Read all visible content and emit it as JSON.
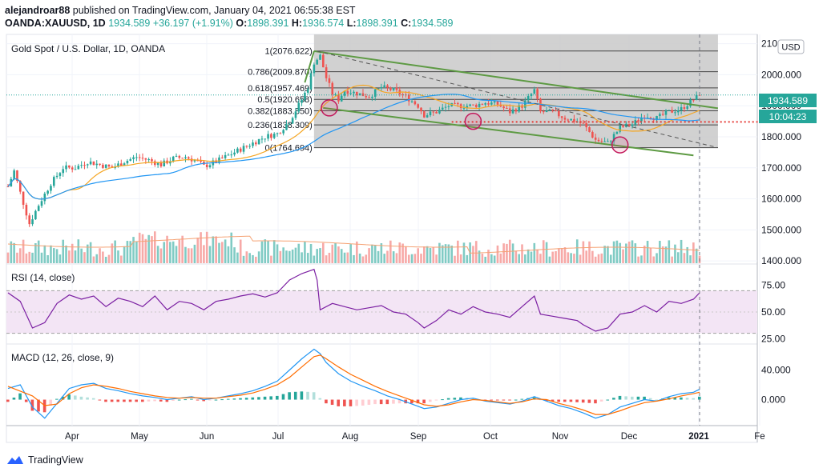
{
  "header": {
    "author": "alejandroar88",
    "published_text": "published on TradingView.com, January 04, 2021 06:55:38 EST"
  },
  "ticker": {
    "symbol": "OANDA:XAUUSD, 1D",
    "last": "1934.589",
    "change": "+36.197 (+1.91%)",
    "o_label": "O:",
    "o": "1898.391",
    "h_label": "H:",
    "h": "1936.574",
    "l_label": "L:",
    "l": "1898.391",
    "c_label": "C:",
    "c": "1934.589"
  },
  "main_pane": {
    "title": "Gold Spot / U.S. Dollar, 1D, OANDA",
    "currency_button": "USD",
    "price_badge": "1934.589",
    "countdown_badge": "10:04:23"
  },
  "rsi_pane": {
    "title": "RSI (14, close)"
  },
  "macd_pane": {
    "title": "MACD (12, 26, close, 9)"
  },
  "footer": {
    "brand": "TradingView"
  },
  "colors": {
    "up": "#26a69a",
    "down": "#ef5350",
    "ma_fast": "#f5a623",
    "ma_slow": "#2196f3",
    "channel": "#5d9a43",
    "fib_zone": "#c9c9c9",
    "rsi": "#7b1fa2",
    "rsi_band": "#f3e5f5",
    "macd_line": "#2196f3",
    "signal_line": "#ff6d00"
  },
  "chart_data": [
    {
      "type": "candlestick",
      "title": "Gold Spot / U.S. Dollar, 1D, OANDA",
      "x_ticks": [
        "Apr",
        "May",
        "Jun",
        "Jul",
        "Aug",
        "Sep",
        "Oct",
        "Nov",
        "Dec",
        "2021",
        "Fe"
      ],
      "y_ticks": [
        "2100.000",
        "2000.000",
        "1900.000",
        "1800.000",
        "1700.000",
        "1600.000",
        "1500.000",
        "1400.000"
      ],
      "ylim": [
        1390,
        2130
      ],
      "overlays": [
        "moving-average-fast",
        "moving-average-slow",
        "volume"
      ],
      "price_path": [
        [
          0,
          1640
        ],
        [
          2,
          1690
        ],
        [
          4,
          1620
        ],
        [
          7,
          1520
        ],
        [
          10,
          1580
        ],
        [
          14,
          1650
        ],
        [
          18,
          1700
        ],
        [
          22,
          1700
        ],
        [
          26,
          1720
        ],
        [
          30,
          1710
        ],
        [
          34,
          1700
        ],
        [
          38,
          1720
        ],
        [
          42,
          1735
        ],
        [
          46,
          1725
        ],
        [
          50,
          1710
        ],
        [
          54,
          1730
        ],
        [
          58,
          1735
        ],
        [
          62,
          1720
        ],
        [
          64,
          1705
        ],
        [
          68,
          1720
        ],
        [
          72,
          1740
        ],
        [
          76,
          1760
        ],
        [
          80,
          1780
        ],
        [
          84,
          1800
        ],
        [
          88,
          1810
        ],
        [
          92,
          1850
        ],
        [
          96,
          1920
        ],
        [
          98,
          1960
        ],
        [
          100,
          2040
        ],
        [
          102,
          2060
        ],
        [
          104,
          1990
        ],
        [
          106,
          1940
        ],
        [
          108,
          1920
        ],
        [
          110,
          1950
        ],
        [
          114,
          1940
        ],
        [
          118,
          1930
        ],
        [
          122,
          1960
        ],
        [
          126,
          1950
        ],
        [
          130,
          1930
        ],
        [
          134,
          1900
        ],
        [
          136,
          1870
        ],
        [
          140,
          1880
        ],
        [
          144,
          1900
        ],
        [
          148,
          1900
        ],
        [
          152,
          1900
        ],
        [
          156,
          1910
        ],
        [
          160,
          1905
        ],
        [
          164,
          1880
        ],
        [
          168,
          1900
        ],
        [
          172,
          1950
        ],
        [
          174,
          1880
        ],
        [
          178,
          1880
        ],
        [
          182,
          1860
        ],
        [
          186,
          1850
        ],
        [
          188,
          1840
        ],
        [
          192,
          1790
        ],
        [
          196,
          1780
        ],
        [
          200,
          1830
        ],
        [
          204,
          1840
        ],
        [
          208,
          1870
        ],
        [
          212,
          1860
        ],
        [
          216,
          1880
        ],
        [
          220,
          1890
        ],
        [
          224,
          1920
        ],
        [
          226,
          1934.589
        ]
      ],
      "fibonacci": [
        {
          "label": "1(2076.622)",
          "value": 2076.622
        },
        {
          "label": "0.786(2009.870)",
          "value": 2009.87
        },
        {
          "label": "0.618(1957.469)",
          "value": 1957.469
        },
        {
          "label": "0.5(1920.658)",
          "value": 1920.658
        },
        {
          "label": "0.382(1883.850)",
          "value": 1883.85
        },
        {
          "label": "0.236(1838.309)",
          "value": 1838.309
        },
        {
          "label": "0(1764.694)",
          "value": 1764.694
        }
      ],
      "last_price": 1934.589
    },
    {
      "type": "line",
      "title": "RSI (14, close)",
      "y_ticks": [
        "75.00",
        "50.00",
        "25.00"
      ],
      "ylim": [
        20,
        95
      ],
      "band": [
        30,
        70
      ],
      "values": [
        [
          0,
          68
        ],
        [
          4,
          60
        ],
        [
          8,
          35
        ],
        [
          12,
          40
        ],
        [
          16,
          58
        ],
        [
          20,
          66
        ],
        [
          24,
          62
        ],
        [
          28,
          65
        ],
        [
          32,
          55
        ],
        [
          36,
          63
        ],
        [
          40,
          60
        ],
        [
          44,
          55
        ],
        [
          48,
          65
        ],
        [
          52,
          52
        ],
        [
          56,
          60
        ],
        [
          60,
          58
        ],
        [
          64,
          52
        ],
        [
          68,
          60
        ],
        [
          72,
          62
        ],
        [
          76,
          65
        ],
        [
          80,
          67
        ],
        [
          84,
          64
        ],
        [
          88,
          68
        ],
        [
          92,
          80
        ],
        [
          96,
          86
        ],
        [
          100,
          90
        ],
        [
          101,
          80
        ],
        [
          102,
          52
        ],
        [
          106,
          58
        ],
        [
          110,
          55
        ],
        [
          114,
          52
        ],
        [
          118,
          54
        ],
        [
          122,
          56
        ],
        [
          126,
          50
        ],
        [
          130,
          48
        ],
        [
          134,
          40
        ],
        [
          136,
          35
        ],
        [
          140,
          42
        ],
        [
          144,
          52
        ],
        [
          148,
          48
        ],
        [
          152,
          55
        ],
        [
          156,
          50
        ],
        [
          160,
          48
        ],
        [
          164,
          45
        ],
        [
          168,
          55
        ],
        [
          172,
          65
        ],
        [
          174,
          48
        ],
        [
          178,
          46
        ],
        [
          182,
          44
        ],
        [
          186,
          42
        ],
        [
          188,
          38
        ],
        [
          192,
          32
        ],
        [
          196,
          35
        ],
        [
          200,
          48
        ],
        [
          204,
          50
        ],
        [
          208,
          56
        ],
        [
          212,
          50
        ],
        [
          216,
          60
        ],
        [
          220,
          58
        ],
        [
          224,
          62
        ],
        [
          226,
          68
        ]
      ]
    },
    {
      "type": "line",
      "title": "MACD (12, 26, close, 9)",
      "y_ticks": [
        "40.000",
        "0.000"
      ],
      "ylim": [
        -35,
        75
      ],
      "series": [
        {
          "values": [
            [
              0,
              15
            ],
            [
              4,
              20
            ],
            [
              8,
              -10
            ],
            [
              12,
              -25
            ],
            [
              16,
              -5
            ],
            [
              20,
              15
            ],
            [
              24,
              20
            ],
            [
              28,
              22
            ],
            [
              32,
              15
            ],
            [
              36,
              12
            ],
            [
              40,
              8
            ],
            [
              44,
              5
            ],
            [
              48,
              3
            ],
            [
              52,
              0
            ],
            [
              56,
              2
            ],
            [
              60,
              4
            ],
            [
              64,
              0
            ],
            [
              68,
              2
            ],
            [
              72,
              5
            ],
            [
              76,
              8
            ],
            [
              80,
              12
            ],
            [
              84,
              18
            ],
            [
              88,
              25
            ],
            [
              92,
              40
            ],
            [
              96,
              55
            ],
            [
              100,
              68
            ],
            [
              102,
              62
            ],
            [
              104,
              50
            ],
            [
              108,
              35
            ],
            [
              112,
              25
            ],
            [
              116,
              18
            ],
            [
              120,
              12
            ],
            [
              124,
              5
            ],
            [
              128,
              0
            ],
            [
              132,
              -6
            ],
            [
              136,
              -12
            ],
            [
              140,
              -10
            ],
            [
              144,
              -5
            ],
            [
              148,
              0
            ],
            [
              152,
              2
            ],
            [
              156,
              -2
            ],
            [
              160,
              -4
            ],
            [
              164,
              -6
            ],
            [
              168,
              -2
            ],
            [
              172,
              4
            ],
            [
              176,
              -2
            ],
            [
              180,
              -8
            ],
            [
              184,
              -12
            ],
            [
              188,
              -18
            ],
            [
              192,
              -25
            ],
            [
              196,
              -20
            ],
            [
              200,
              -10
            ],
            [
              204,
              -5
            ],
            [
              208,
              0
            ],
            [
              212,
              -2
            ],
            [
              216,
              4
            ],
            [
              220,
              8
            ],
            [
              224,
              10
            ],
            [
              226,
              14
            ]
          ]
        },
        {
          "values": [
            [
              0,
              18
            ],
            [
              8,
              5
            ],
            [
              12,
              -8
            ],
            [
              16,
              -6
            ],
            [
              20,
              8
            ],
            [
              24,
              16
            ],
            [
              28,
              20
            ],
            [
              32,
              18
            ],
            [
              36,
              15
            ],
            [
              40,
              11
            ],
            [
              44,
              8
            ],
            [
              48,
              5
            ],
            [
              52,
              3
            ],
            [
              56,
              2
            ],
            [
              60,
              3
            ],
            [
              64,
              2
            ],
            [
              68,
              2
            ],
            [
              72,
              4
            ],
            [
              76,
              6
            ],
            [
              80,
              9
            ],
            [
              84,
              14
            ],
            [
              88,
              20
            ],
            [
              92,
              30
            ],
            [
              96,
              44
            ],
            [
              100,
              58
            ],
            [
              102,
              60
            ],
            [
              104,
              55
            ],
            [
              108,
              44
            ],
            [
              112,
              34
            ],
            [
              116,
              26
            ],
            [
              120,
              18
            ],
            [
              124,
              11
            ],
            [
              128,
              5
            ],
            [
              132,
              -1
            ],
            [
              136,
              -7
            ],
            [
              140,
              -9
            ],
            [
              144,
              -7
            ],
            [
              148,
              -3
            ],
            [
              152,
              0
            ],
            [
              156,
              -1
            ],
            [
              160,
              -3
            ],
            [
              164,
              -5
            ],
            [
              168,
              -3
            ],
            [
              172,
              1
            ],
            [
              176,
              0
            ],
            [
              180,
              -5
            ],
            [
              184,
              -9
            ],
            [
              188,
              -14
            ],
            [
              192,
              -20
            ],
            [
              196,
              -20
            ],
            [
              200,
              -15
            ],
            [
              204,
              -9
            ],
            [
              208,
              -4
            ],
            [
              212,
              -2
            ],
            [
              216,
              1
            ],
            [
              220,
              5
            ],
            [
              224,
              8
            ],
            [
              226,
              10
            ]
          ]
        }
      ]
    }
  ]
}
